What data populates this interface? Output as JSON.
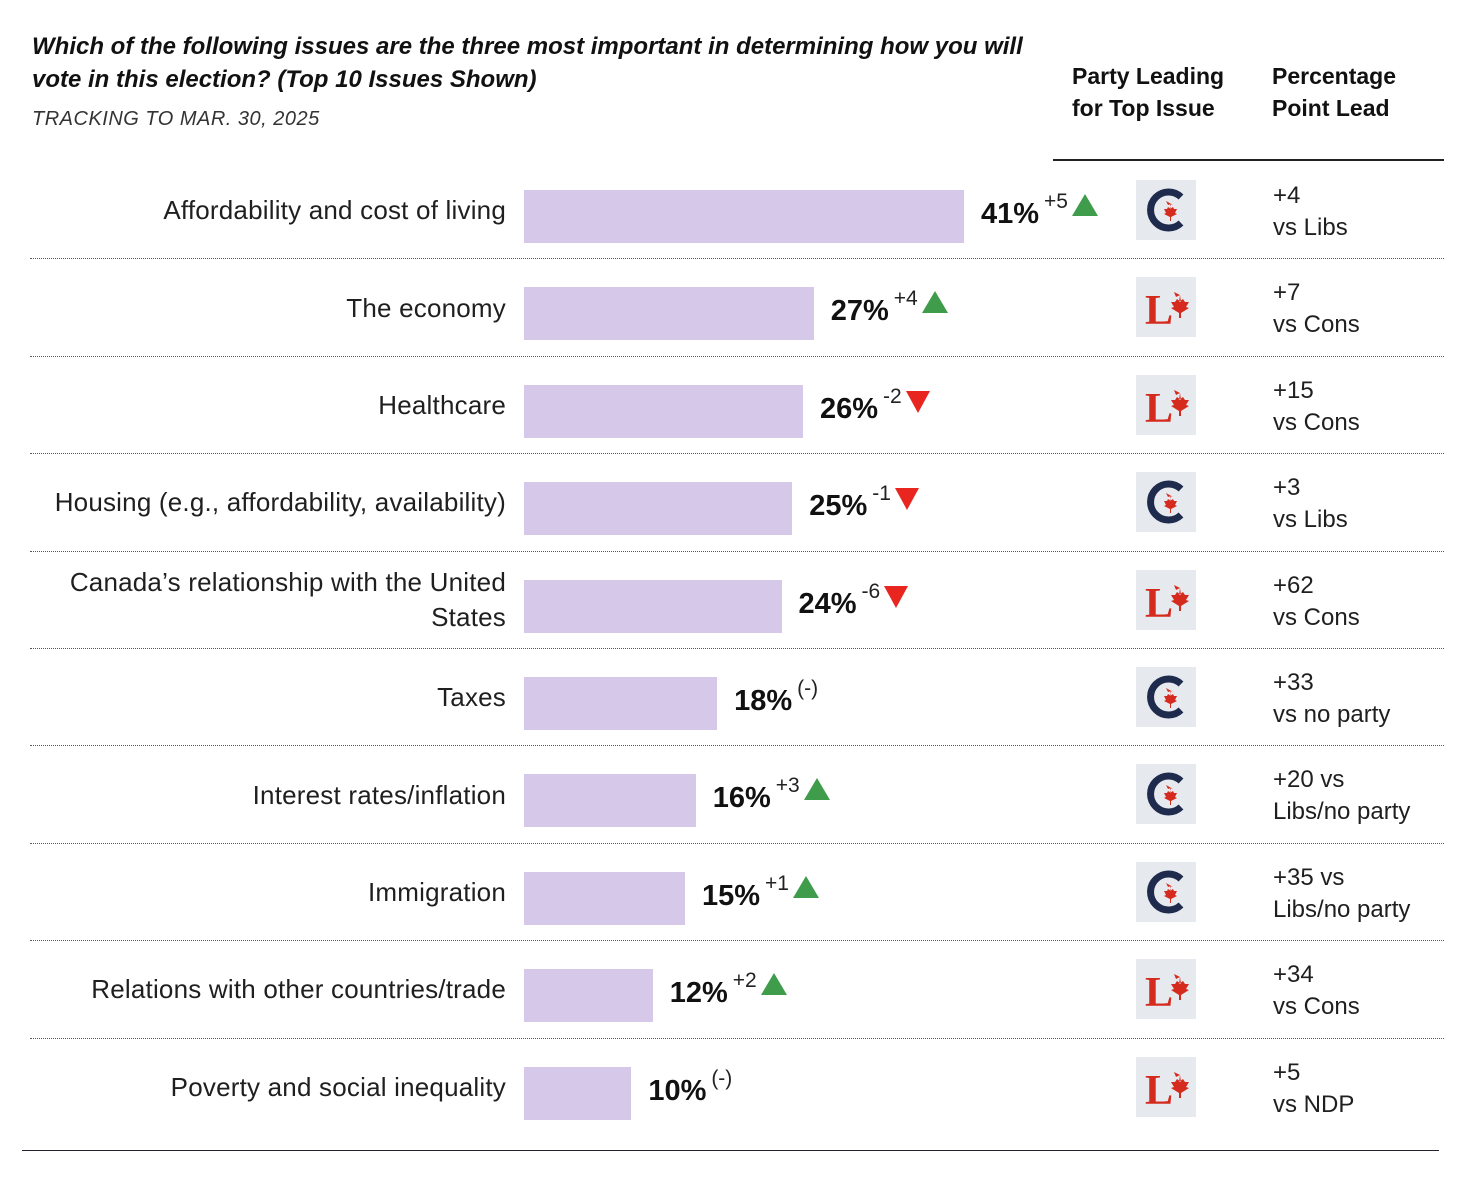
{
  "chart_data": {
    "type": "bar",
    "orientation": "horizontal",
    "title": "Which of the following issues are the three most important in determining how you will vote in this election? (Top 10 Issues Shown)",
    "subtitle": "TRACKING TO MAR. 30, 2025",
    "column_headers": {
      "party": "Party Leading for Top Issue",
      "lead": "Percentage Point Lead"
    },
    "xlim": [
      0,
      100
    ],
    "bar_color": "#d5c8e8",
    "up_color": "#3f9c4a",
    "down_color": "#e8261f",
    "rows": [
      {
        "category": "Affordability and cost of living",
        "value": 41,
        "pct_label": "41%",
        "change": "+5",
        "direction": "up",
        "party": "Conservative",
        "party_icon": "conservative-logo-icon",
        "lead": "+4\nvs Libs"
      },
      {
        "category": "The economy",
        "value": 27,
        "pct_label": "27%",
        "change": "+4",
        "direction": "up",
        "party": "Liberal",
        "party_icon": "liberal-logo-icon",
        "lead": "+7\nvs Cons"
      },
      {
        "category": "Healthcare",
        "value": 26,
        "pct_label": "26%",
        "change": "-2",
        "direction": "down",
        "party": "Liberal",
        "party_icon": "liberal-logo-icon",
        "lead": "+15\nvs Cons"
      },
      {
        "category": "Housing (e.g., affordability, availability)",
        "value": 25,
        "pct_label": "25%",
        "change": "-1",
        "direction": "down",
        "party": "Conservative",
        "party_icon": "conservative-logo-icon",
        "lead": "+3\nvs Libs"
      },
      {
        "category": "Canada’s relationship with the United States",
        "value": 24,
        "pct_label": "24%",
        "change": "-6",
        "direction": "down",
        "party": "Liberal",
        "party_icon": "liberal-logo-icon",
        "lead": "+62\nvs Cons"
      },
      {
        "category": "Taxes",
        "value": 18,
        "pct_label": "18%",
        "change": "(-)",
        "direction": "none",
        "party": "Conservative",
        "party_icon": "conservative-logo-icon",
        "lead": "+33\nvs no party"
      },
      {
        "category": "Interest rates/inflation",
        "value": 16,
        "pct_label": "16%",
        "change": "+3",
        "direction": "up",
        "party": "Conservative",
        "party_icon": "conservative-logo-icon",
        "lead": "+20 vs\nLibs/no party"
      },
      {
        "category": "Immigration",
        "value": 15,
        "pct_label": "15%",
        "change": "+1",
        "direction": "up",
        "party": "Conservative",
        "party_icon": "conservative-logo-icon",
        "lead": "+35  vs\nLibs/no party"
      },
      {
        "category": "Relations with other countries/trade",
        "value": 12,
        "pct_label": "12%",
        "change": "+2",
        "direction": "up",
        "party": "Liberal",
        "party_icon": "liberal-logo-icon",
        "lead": "+34\nvs Cons"
      },
      {
        "category": "Poverty and social inequality",
        "value": 10,
        "pct_label": "10%",
        "change": "(-)",
        "direction": "none",
        "party": "Liberal",
        "party_icon": "liberal-logo-icon",
        "lead": "+5\nvs NDP"
      }
    ]
  }
}
